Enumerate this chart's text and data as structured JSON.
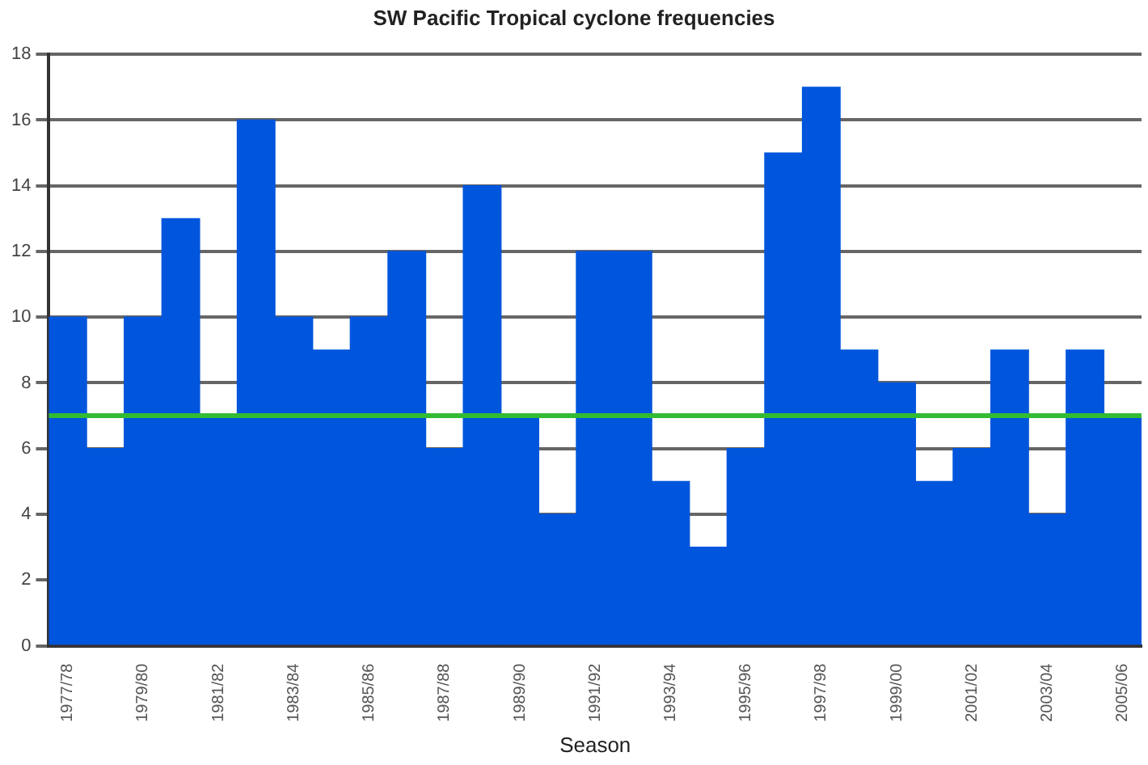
{
  "chart_data": {
    "type": "bar",
    "title": "SW Pacific Tropical cyclone frequencies",
    "xlabel": "Season",
    "categories": [
      "1977/78",
      null,
      "1979/80",
      null,
      "1981/82",
      null,
      "1983/84",
      null,
      "1985/86",
      null,
      "1987/88",
      null,
      "1989/90",
      null,
      "1991/92",
      null,
      "1993/94",
      null,
      "1995/96",
      null,
      "1997/98",
      null,
      "1999/00",
      null,
      "2001/02",
      null,
      "2003/04",
      null,
      "2005/06"
    ],
    "values": [
      10,
      6,
      10,
      13,
      7,
      16,
      10,
      9,
      10,
      12,
      6,
      14,
      7,
      4,
      12,
      12,
      5,
      3,
      6,
      15,
      17,
      9,
      8,
      5,
      6,
      9,
      4,
      9,
      7
    ],
    "color": "#0055dd",
    "ylim": [
      0,
      18
    ],
    "yticks": [
      0,
      2,
      4,
      6,
      8,
      10,
      12,
      14,
      16,
      18
    ],
    "grid": "y",
    "ref_lines": [
      {
        "axis": "y",
        "value": 7,
        "color": "#33bb33"
      }
    ]
  }
}
